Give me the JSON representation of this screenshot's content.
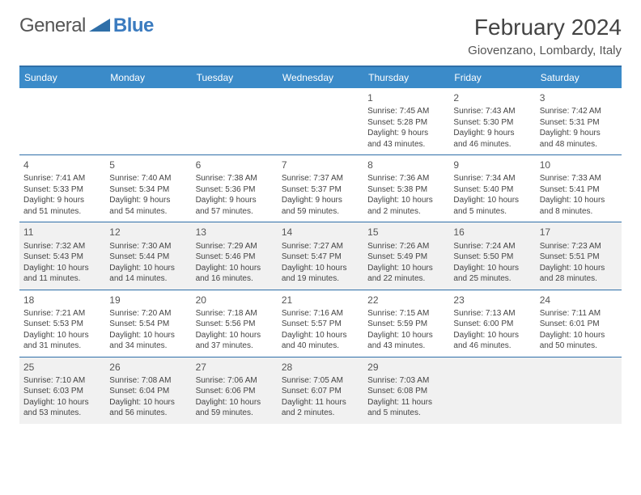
{
  "brand": {
    "name1": "General",
    "name2": "Blue"
  },
  "header": {
    "title": "February 2024",
    "location": "Giovenzano, Lombardy, Italy"
  },
  "colors": {
    "header_bar": "#3b8bc9",
    "rule": "#2f6fa8",
    "shade": "#f1f1f1",
    "bg": "#ffffff",
    "text": "#444444"
  },
  "weekdays": [
    "Sunday",
    "Monday",
    "Tuesday",
    "Wednesday",
    "Thursday",
    "Friday",
    "Saturday"
  ],
  "weeks": [
    [
      null,
      null,
      null,
      null,
      {
        "n": "1",
        "sr": "Sunrise: 7:45 AM",
        "ss": "Sunset: 5:28 PM",
        "dl1": "Daylight: 9 hours",
        "dl2": "and 43 minutes."
      },
      {
        "n": "2",
        "sr": "Sunrise: 7:43 AM",
        "ss": "Sunset: 5:30 PM",
        "dl1": "Daylight: 9 hours",
        "dl2": "and 46 minutes."
      },
      {
        "n": "3",
        "sr": "Sunrise: 7:42 AM",
        "ss": "Sunset: 5:31 PM",
        "dl1": "Daylight: 9 hours",
        "dl2": "and 48 minutes."
      }
    ],
    [
      {
        "n": "4",
        "sr": "Sunrise: 7:41 AM",
        "ss": "Sunset: 5:33 PM",
        "dl1": "Daylight: 9 hours",
        "dl2": "and 51 minutes."
      },
      {
        "n": "5",
        "sr": "Sunrise: 7:40 AM",
        "ss": "Sunset: 5:34 PM",
        "dl1": "Daylight: 9 hours",
        "dl2": "and 54 minutes."
      },
      {
        "n": "6",
        "sr": "Sunrise: 7:38 AM",
        "ss": "Sunset: 5:36 PM",
        "dl1": "Daylight: 9 hours",
        "dl2": "and 57 minutes."
      },
      {
        "n": "7",
        "sr": "Sunrise: 7:37 AM",
        "ss": "Sunset: 5:37 PM",
        "dl1": "Daylight: 9 hours",
        "dl2": "and 59 minutes."
      },
      {
        "n": "8",
        "sr": "Sunrise: 7:36 AM",
        "ss": "Sunset: 5:38 PM",
        "dl1": "Daylight: 10 hours",
        "dl2": "and 2 minutes."
      },
      {
        "n": "9",
        "sr": "Sunrise: 7:34 AM",
        "ss": "Sunset: 5:40 PM",
        "dl1": "Daylight: 10 hours",
        "dl2": "and 5 minutes."
      },
      {
        "n": "10",
        "sr": "Sunrise: 7:33 AM",
        "ss": "Sunset: 5:41 PM",
        "dl1": "Daylight: 10 hours",
        "dl2": "and 8 minutes."
      }
    ],
    [
      {
        "n": "11",
        "sr": "Sunrise: 7:32 AM",
        "ss": "Sunset: 5:43 PM",
        "dl1": "Daylight: 10 hours",
        "dl2": "and 11 minutes."
      },
      {
        "n": "12",
        "sr": "Sunrise: 7:30 AM",
        "ss": "Sunset: 5:44 PM",
        "dl1": "Daylight: 10 hours",
        "dl2": "and 14 minutes."
      },
      {
        "n": "13",
        "sr": "Sunrise: 7:29 AM",
        "ss": "Sunset: 5:46 PM",
        "dl1": "Daylight: 10 hours",
        "dl2": "and 16 minutes."
      },
      {
        "n": "14",
        "sr": "Sunrise: 7:27 AM",
        "ss": "Sunset: 5:47 PM",
        "dl1": "Daylight: 10 hours",
        "dl2": "and 19 minutes."
      },
      {
        "n": "15",
        "sr": "Sunrise: 7:26 AM",
        "ss": "Sunset: 5:49 PM",
        "dl1": "Daylight: 10 hours",
        "dl2": "and 22 minutes."
      },
      {
        "n": "16",
        "sr": "Sunrise: 7:24 AM",
        "ss": "Sunset: 5:50 PM",
        "dl1": "Daylight: 10 hours",
        "dl2": "and 25 minutes."
      },
      {
        "n": "17",
        "sr": "Sunrise: 7:23 AM",
        "ss": "Sunset: 5:51 PM",
        "dl1": "Daylight: 10 hours",
        "dl2": "and 28 minutes."
      }
    ],
    [
      {
        "n": "18",
        "sr": "Sunrise: 7:21 AM",
        "ss": "Sunset: 5:53 PM",
        "dl1": "Daylight: 10 hours",
        "dl2": "and 31 minutes."
      },
      {
        "n": "19",
        "sr": "Sunrise: 7:20 AM",
        "ss": "Sunset: 5:54 PM",
        "dl1": "Daylight: 10 hours",
        "dl2": "and 34 minutes."
      },
      {
        "n": "20",
        "sr": "Sunrise: 7:18 AM",
        "ss": "Sunset: 5:56 PM",
        "dl1": "Daylight: 10 hours",
        "dl2": "and 37 minutes."
      },
      {
        "n": "21",
        "sr": "Sunrise: 7:16 AM",
        "ss": "Sunset: 5:57 PM",
        "dl1": "Daylight: 10 hours",
        "dl2": "and 40 minutes."
      },
      {
        "n": "22",
        "sr": "Sunrise: 7:15 AM",
        "ss": "Sunset: 5:59 PM",
        "dl1": "Daylight: 10 hours",
        "dl2": "and 43 minutes."
      },
      {
        "n": "23",
        "sr": "Sunrise: 7:13 AM",
        "ss": "Sunset: 6:00 PM",
        "dl1": "Daylight: 10 hours",
        "dl2": "and 46 minutes."
      },
      {
        "n": "24",
        "sr": "Sunrise: 7:11 AM",
        "ss": "Sunset: 6:01 PM",
        "dl1": "Daylight: 10 hours",
        "dl2": "and 50 minutes."
      }
    ],
    [
      {
        "n": "25",
        "sr": "Sunrise: 7:10 AM",
        "ss": "Sunset: 6:03 PM",
        "dl1": "Daylight: 10 hours",
        "dl2": "and 53 minutes."
      },
      {
        "n": "26",
        "sr": "Sunrise: 7:08 AM",
        "ss": "Sunset: 6:04 PM",
        "dl1": "Daylight: 10 hours",
        "dl2": "and 56 minutes."
      },
      {
        "n": "27",
        "sr": "Sunrise: 7:06 AM",
        "ss": "Sunset: 6:06 PM",
        "dl1": "Daylight: 10 hours",
        "dl2": "and 59 minutes."
      },
      {
        "n": "28",
        "sr": "Sunrise: 7:05 AM",
        "ss": "Sunset: 6:07 PM",
        "dl1": "Daylight: 11 hours",
        "dl2": "and 2 minutes."
      },
      {
        "n": "29",
        "sr": "Sunrise: 7:03 AM",
        "ss": "Sunset: 6:08 PM",
        "dl1": "Daylight: 11 hours",
        "dl2": "and 5 minutes."
      },
      null,
      null
    ]
  ],
  "shaded_weeks": [
    2,
    4
  ]
}
